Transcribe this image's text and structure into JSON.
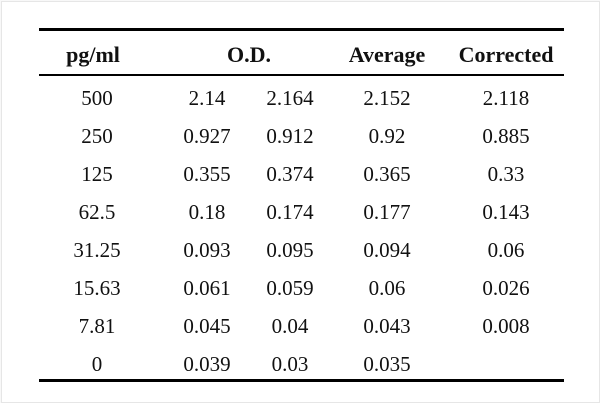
{
  "table": {
    "headers": {
      "pgml": "pg/ml",
      "od": "O.D.",
      "average": "Average",
      "corrected": "Corrected"
    },
    "rows": [
      {
        "pgml": "500",
        "od1": "2.14",
        "od2": "2.164",
        "average": "2.152",
        "corrected": "2.118"
      },
      {
        "pgml": "250",
        "od1": "0.927",
        "od2": "0.912",
        "average": "0.92",
        "corrected": "0.885"
      },
      {
        "pgml": "125",
        "od1": "0.355",
        "od2": "0.374",
        "average": "0.365",
        "corrected": "0.33"
      },
      {
        "pgml": "62.5",
        "od1": "0.18",
        "od2": "0.174",
        "average": "0.177",
        "corrected": "0.143"
      },
      {
        "pgml": "31.25",
        "od1": "0.093",
        "od2": "0.095",
        "average": "0.094",
        "corrected": "0.06"
      },
      {
        "pgml": "15.63",
        "od1": "0.061",
        "od2": "0.059",
        "average": "0.06",
        "corrected": "0.026"
      },
      {
        "pgml": "7.81",
        "od1": "0.045",
        "od2": "0.04",
        "average": "0.043",
        "corrected": "0.008"
      },
      {
        "pgml": "0",
        "od1": "0.039",
        "od2": "0.03",
        "average": "0.035",
        "corrected": ""
      }
    ]
  }
}
